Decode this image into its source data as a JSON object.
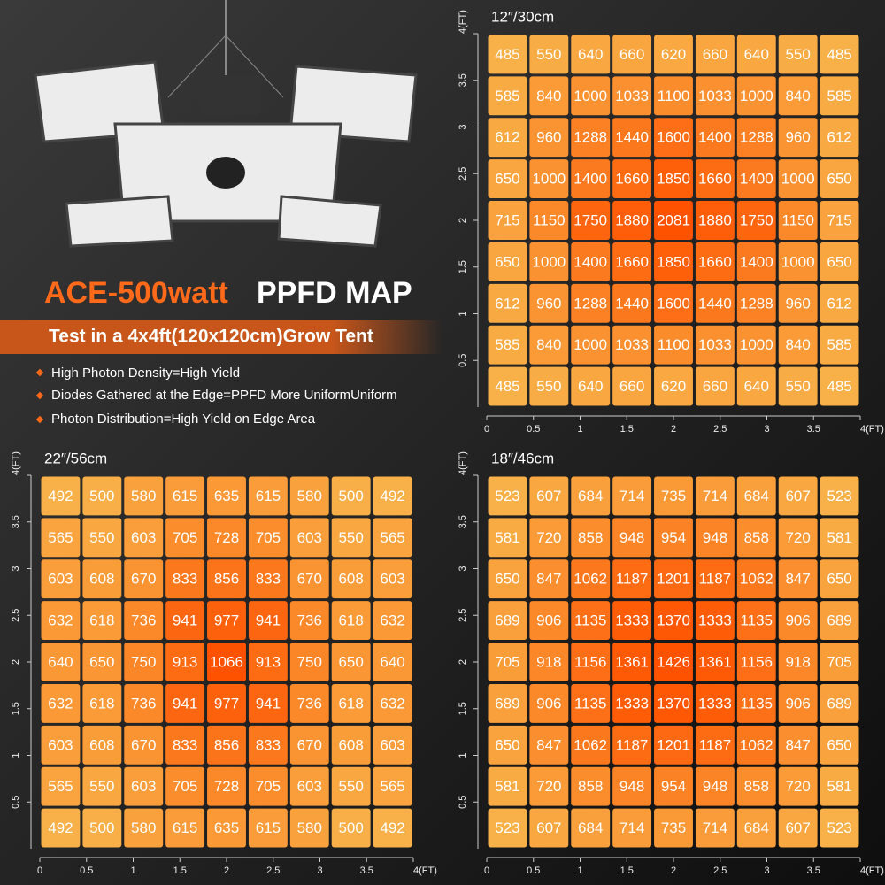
{
  "header": {
    "title_a": "ACE-500watt",
    "title_b": "PPFD MAP",
    "subtitle": "Test in a 4x4ft(120x120cm)Grow Tent",
    "bullets": [
      "High Photon Density=High Yield",
      "Diodes Gathered at the Edge=PPFD More UniformUniform",
      "Photon Distribution=High Yield on Edge Area"
    ]
  },
  "chart_data": [
    {
      "type": "heatmap",
      "title": "12″/30cm",
      "colorscale": [
        "#f8b048",
        "#ff5200"
      ],
      "xlim": [
        0,
        4
      ],
      "ylim": [
        0,
        4
      ],
      "xticks": [
        0,
        0.5,
        1,
        1.5,
        2,
        2.5,
        3,
        3.5,
        {
          "value": 4,
          "label": "4(FT)"
        }
      ],
      "yticks": [
        0.5,
        1,
        1.5,
        2,
        2.5,
        3,
        3.5,
        {
          "value": 4,
          "label": "4(FT)"
        }
      ],
      "values": [
        [
          485,
          550,
          640,
          660,
          620,
          660,
          640,
          550,
          485
        ],
        [
          585,
          840,
          1000,
          1033,
          1100,
          1033,
          1000,
          840,
          585
        ],
        [
          612,
          960,
          1288,
          1440,
          1600,
          1400,
          1288,
          960,
          612
        ],
        [
          650,
          1000,
          1400,
          1660,
          1850,
          1660,
          1400,
          1000,
          650
        ],
        [
          715,
          1150,
          1750,
          1880,
          2081,
          1880,
          1750,
          1150,
          715
        ],
        [
          650,
          1000,
          1400,
          1660,
          1850,
          1660,
          1400,
          1000,
          650
        ],
        [
          612,
          960,
          1288,
          1440,
          1600,
          1440,
          1288,
          960,
          612
        ],
        [
          585,
          840,
          1000,
          1033,
          1100,
          1033,
          1000,
          840,
          585
        ],
        [
          485,
          550,
          640,
          660,
          620,
          660,
          640,
          550,
          485
        ]
      ]
    },
    {
      "type": "heatmap",
      "title": "22″/56cm",
      "colorscale": [
        "#f8b048",
        "#ff5200"
      ],
      "xlim": [
        0,
        4
      ],
      "ylim": [
        0,
        4
      ],
      "xticks": [
        0,
        0.5,
        1,
        1.5,
        2,
        2.5,
        3,
        3.5,
        {
          "value": 4,
          "label": "4(FT)"
        }
      ],
      "yticks": [
        0.5,
        1,
        1.5,
        2,
        2.5,
        3,
        3.5,
        {
          "value": 4,
          "label": "4(FT)"
        }
      ],
      "values": [
        [
          492,
          500,
          580,
          615,
          635,
          615,
          580,
          500,
          492
        ],
        [
          565,
          550,
          603,
          705,
          728,
          705,
          603,
          550,
          565
        ],
        [
          603,
          608,
          670,
          833,
          856,
          833,
          670,
          608,
          603
        ],
        [
          632,
          618,
          736,
          941,
          977,
          941,
          736,
          618,
          632
        ],
        [
          640,
          650,
          750,
          913,
          1066,
          913,
          750,
          650,
          640
        ],
        [
          632,
          618,
          736,
          941,
          977,
          941,
          736,
          618,
          632
        ],
        [
          603,
          608,
          670,
          833,
          856,
          833,
          670,
          608,
          603
        ],
        [
          565,
          550,
          603,
          705,
          728,
          705,
          603,
          550,
          565
        ],
        [
          492,
          500,
          580,
          615,
          635,
          615,
          580,
          500,
          492
        ]
      ]
    },
    {
      "type": "heatmap",
      "title": "18″/46cm",
      "colorscale": [
        "#f8b048",
        "#ff5200"
      ],
      "xlim": [
        0,
        4
      ],
      "ylim": [
        0,
        4
      ],
      "xticks": [
        0,
        0.5,
        1,
        1.5,
        2,
        2.5,
        3,
        3.5,
        {
          "value": 4,
          "label": "4(FT)"
        }
      ],
      "yticks": [
        0.5,
        1,
        1.5,
        2,
        2.5,
        3,
        3.5,
        {
          "value": 4,
          "label": "4(FT)"
        }
      ],
      "values": [
        [
          523,
          607,
          684,
          714,
          735,
          714,
          684,
          607,
          523
        ],
        [
          581,
          720,
          858,
          948,
          954,
          948,
          858,
          720,
          581
        ],
        [
          650,
          847,
          1062,
          1187,
          1201,
          1187,
          1062,
          847,
          650
        ],
        [
          689,
          906,
          1135,
          1333,
          1370,
          1333,
          1135,
          906,
          689
        ],
        [
          705,
          918,
          1156,
          1361,
          1426,
          1361,
          1156,
          918,
          705
        ],
        [
          689,
          906,
          1135,
          1333,
          1370,
          1333,
          1135,
          906,
          689
        ],
        [
          650,
          847,
          1062,
          1187,
          1201,
          1187,
          1062,
          847,
          650
        ],
        [
          581,
          720,
          858,
          948,
          954,
          948,
          858,
          720,
          581
        ],
        [
          523,
          607,
          684,
          714,
          735,
          714,
          684,
          607,
          523
        ]
      ]
    }
  ]
}
